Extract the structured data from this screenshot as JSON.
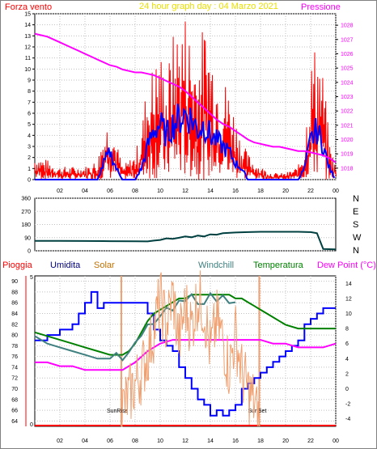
{
  "chart_data": [
    {
      "type": "line",
      "title": "24 hour graph day : 04 Marzo 2021",
      "title_color": "#e8e000",
      "left_label": "Forza vento",
      "left_color": "#ff0000",
      "right_label": "Pressione",
      "right_color": "#ff00ff",
      "x_ticks": [
        "02",
        "04",
        "06",
        "08",
        "10",
        "12",
        "14",
        "16",
        "18",
        "20",
        "22",
        "00"
      ],
      "x_range_hours": [
        0,
        24
      ],
      "left_axis_ticks": [
        "0",
        "1",
        "2",
        "3",
        "4",
        "5",
        "6",
        "7",
        "8",
        "9",
        "10",
        "11",
        "12",
        "13",
        "14",
        "15"
      ],
      "ylim_left": [
        0,
        15
      ],
      "right_axis_ticks": [
        "1018",
        "1019",
        "1020",
        "1021",
        "1022",
        "1023",
        "1024",
        "1025",
        "1026",
        "1027",
        "1028"
      ],
      "ylim_right": [
        1017.2,
        1028.8
      ],
      "grid": true,
      "series": [
        {
          "key": "pressure",
          "color": "#ff00ff",
          "x": [
            0,
            0.5,
            1,
            1.5,
            2,
            2.5,
            3,
            3.5,
            4,
            4.5,
            5,
            5.5,
            6,
            6.5,
            7,
            7.5,
            8,
            8.5,
            9,
            9.5,
            10,
            10.5,
            11,
            11.5,
            12,
            12.5,
            13,
            13.5,
            14,
            14.5,
            15,
            15.5,
            16,
            16.5,
            17,
            17.5,
            18,
            18.5,
            19,
            19.5,
            20,
            20.5,
            21,
            21.5,
            22,
            22.5,
            23,
            23.5,
            24
          ],
          "values": [
            1027.4,
            1027.3,
            1027.2,
            1027.0,
            1026.8,
            1026.6,
            1026.4,
            1026.2,
            1026.0,
            1025.8,
            1025.6,
            1025.4,
            1025.2,
            1025.1,
            1024.9,
            1024.8,
            1024.7,
            1024.7,
            1024.6,
            1024.5,
            1024.3,
            1024.1,
            1023.9,
            1023.7,
            1023.4,
            1023.0,
            1022.6,
            1022.2,
            1021.8,
            1021.4,
            1021.1,
            1020.9,
            1020.6,
            1020.3,
            1020.0,
            1019.8,
            1019.7,
            1019.6,
            1019.5,
            1019.5,
            1019.4,
            1019.3,
            1019.2,
            1019.2,
            1019.1,
            1019.0,
            1018.9,
            1018.7,
            1018.4
          ]
        },
        {
          "key": "wind_avg",
          "color": "#0000ff",
          "x": [
            0,
            1,
            2,
            3,
            4,
            5,
            5.5,
            6,
            6.5,
            7,
            7.5,
            8,
            8.5,
            9,
            9.5,
            10,
            10.5,
            11,
            11.5,
            12,
            12.5,
            13,
            13.5,
            14,
            14.5,
            15,
            15.5,
            16,
            16.5,
            17,
            18,
            19,
            20,
            21,
            21.5,
            22,
            22.5,
            23,
            23.5,
            24
          ],
          "values": [
            0,
            0,
            0,
            0,
            0,
            0,
            1.5,
            2.5,
            1,
            0,
            0,
            0,
            1,
            3,
            4.5,
            5,
            4,
            5,
            5.5,
            6,
            5.5,
            4.5,
            5,
            4,
            3.5,
            3,
            2.5,
            1.5,
            1,
            0,
            0,
            0,
            0,
            0,
            1,
            3.5,
            4.5,
            3,
            1,
            0
          ]
        },
        {
          "key": "wind_gust",
          "color": "#ff0000",
          "x": [
            0,
            1,
            2,
            3,
            4,
            5,
            5.5,
            6,
            6.5,
            7,
            7.5,
            8,
            8.5,
            9,
            9.5,
            10,
            10.5,
            11,
            11.5,
            12,
            12.5,
            13,
            13.5,
            14,
            14.5,
            15,
            15.5,
            16,
            16.5,
            17,
            18,
            19,
            20,
            21,
            21.5,
            22,
            22.5,
            23,
            23.5,
            24
          ],
          "values": [
            2,
            1.5,
            1,
            1,
            1,
            1.5,
            4,
            5,
            3,
            1,
            1.5,
            2,
            4,
            8,
            9,
            10,
            8,
            11,
            12,
            13,
            11,
            10,
            12,
            11,
            9,
            8,
            7,
            5,
            3,
            2,
            1,
            0.5,
            0.5,
            1,
            3,
            9,
            11,
            8,
            3,
            1
          ]
        }
      ]
    },
    {
      "type": "line",
      "title": "",
      "left_axis_ticks": [
        "0",
        "90",
        "180",
        "270",
        "360"
      ],
      "ylim": [
        0,
        360
      ],
      "right_labels": [
        "N",
        "W",
        "S",
        "E",
        "N"
      ],
      "x_ticks": [
        "02",
        "04",
        "06",
        "08",
        "10",
        "12",
        "14",
        "16",
        "18",
        "20",
        "22",
        "00"
      ],
      "series": [
        {
          "key": "wind_dir",
          "color": "#004040",
          "x": [
            0,
            2,
            4,
            6,
            8,
            9,
            9.5,
            10,
            10.5,
            11,
            11.5,
            12,
            12.5,
            13,
            13.5,
            14,
            14.5,
            15,
            16,
            17,
            18,
            19,
            20,
            21,
            22,
            22.5,
            23,
            24
          ],
          "values": [
            68,
            68,
            67,
            66,
            65,
            64,
            70,
            80,
            85,
            90,
            92,
            95,
            100,
            98,
            105,
            110,
            115,
            120,
            125,
            128,
            130,
            130,
            130,
            130,
            128,
            120,
            12,
            10
          ]
        }
      ]
    },
    {
      "type": "line",
      "title": "",
      "legend": [
        {
          "label": "Pioggia",
          "color": "#ff0000"
        },
        {
          "label": "Umidita",
          "color": "#000080"
        },
        {
          "label": "Solar",
          "color": "#c07000"
        },
        {
          "label": "Windchill",
          "color": "#408080"
        },
        {
          "label": "Temperatura",
          "color": "#008000"
        },
        {
          "label": "Dew Point (°C)",
          "color": "#ff00ff"
        }
      ],
      "left_axis_ticks": [
        "64",
        "66",
        "68",
        "70",
        "72",
        "74",
        "76",
        "78",
        "80",
        "82",
        "84",
        "86",
        "88",
        "90"
      ],
      "ylim_left": [
        63,
        91
      ],
      "rain_axis_ticks": [
        "0",
        "5"
      ],
      "right_axis_ticks": [
        "-4",
        "-2",
        "0",
        "2",
        "4",
        "6",
        "8",
        "10",
        "12",
        "14"
      ],
      "ylim_right": [
        -5,
        15
      ],
      "x_ticks": [
        "02",
        "04",
        "06",
        "08",
        "10",
        "12",
        "14",
        "16",
        "18",
        "20",
        "22",
        "00"
      ],
      "sunrise_label": "SunRise",
      "sunset_label": "SunSet",
      "sunrise_hour": 6.9,
      "sunset_hour": 17.9,
      "series": [
        {
          "key": "humidity",
          "color": "#0000ff",
          "x": [
            0,
            1,
            2,
            3,
            3.5,
            4,
            4.5,
            5,
            5.5,
            6,
            7,
            8,
            8.5,
            9,
            9.5,
            10,
            10.5,
            11,
            11.5,
            12,
            12.5,
            13,
            13.5,
            14,
            14.5,
            15,
            15.5,
            16,
            16.5,
            17,
            17.5,
            18,
            18.5,
            19,
            19.5,
            20,
            20.5,
            21,
            21.5,
            22,
            22.5,
            23,
            24
          ],
          "values": [
            79,
            80,
            81,
            82,
            84,
            86,
            88,
            85,
            86,
            86,
            86,
            86,
            86,
            84,
            81,
            79,
            78,
            77,
            74,
            72,
            70,
            68,
            67,
            65,
            66,
            65,
            66,
            67,
            70,
            71,
            72,
            73,
            74,
            75,
            76,
            77,
            78,
            79,
            82,
            83,
            84,
            85,
            85
          ]
        },
        {
          "key": "temperature",
          "color": "#008000",
          "x": [
            0,
            1,
            2,
            3,
            4,
            5,
            6,
            6.5,
            7,
            7.5,
            8,
            8.5,
            9,
            9.5,
            10,
            10.5,
            11,
            11.5,
            12,
            12.5,
            13,
            13.5,
            14,
            14.5,
            15,
            15.5,
            16,
            16.5,
            17,
            17.5,
            18,
            18.5,
            19,
            19.5,
            20,
            21,
            22,
            23,
            24
          ],
          "values": [
            7.5,
            7,
            6.5,
            6,
            5.5,
            5,
            4.5,
            4.5,
            4.5,
            5,
            6,
            7.5,
            9,
            10,
            10.5,
            11,
            11.5,
            12,
            12,
            12.5,
            12.5,
            12.5,
            12.5,
            12.5,
            12.5,
            12.5,
            12,
            12,
            11.5,
            11,
            10.5,
            10,
            9.5,
            9,
            8.5,
            8,
            8,
            8,
            8
          ]
        },
        {
          "key": "windchill",
          "color": "#408080",
          "x": [
            0,
            1,
            2,
            3,
            4,
            5,
            6,
            6.5,
            7,
            7.5,
            8,
            8.5,
            9,
            9.5,
            10,
            10.5,
            11,
            11.5,
            12,
            12.5,
            13,
            13.5,
            14,
            14.5,
            15,
            15.5,
            16
          ],
          "values": [
            7,
            6,
            5.5,
            5,
            4.5,
            4,
            4,
            4,
            4,
            4.5,
            5.5,
            7,
            8,
            9,
            9.5,
            10,
            10.5,
            11,
            11.5,
            12,
            12,
            12,
            12,
            12,
            12,
            12,
            11.5
          ]
        },
        {
          "key": "dew_point",
          "color": "#ff00ff",
          "x": [
            0,
            1,
            2,
            3,
            4,
            5,
            6,
            7,
            8,
            9,
            10,
            11,
            12,
            13,
            14,
            15,
            16,
            17,
            18,
            19,
            20,
            21,
            22,
            23,
            24
          ],
          "values": [
            3.5,
            3.5,
            3,
            3,
            2.5,
            2.5,
            2.5,
            2.5,
            3.5,
            5,
            6,
            6.5,
            6.5,
            6.5,
            6.5,
            6.5,
            6.5,
            6.5,
            6.5,
            6,
            6,
            5.5,
            5.5,
            5.5,
            6
          ]
        },
        {
          "key": "solar",
          "color": "#f0a070",
          "x": [
            6.9,
            7,
            7.5,
            8,
            8.5,
            9,
            9.5,
            10,
            10.5,
            11,
            11.5,
            12,
            12.5,
            13,
            13.5,
            14,
            14.5,
            15,
            15.5,
            16,
            16.5,
            17,
            17.5,
            17.9
          ],
          "values": [
            0,
            0.6,
            1.0,
            1.4,
            1.8,
            2.4,
            3.2,
            4.2,
            3.3,
            4.4,
            2.8,
            4.0,
            3.3,
            4.3,
            3.9,
            2.5,
            3.5,
            2.9,
            1.9,
            3.1,
            1.8,
            1.2,
            0.8,
            0
          ]
        }
      ]
    }
  ]
}
